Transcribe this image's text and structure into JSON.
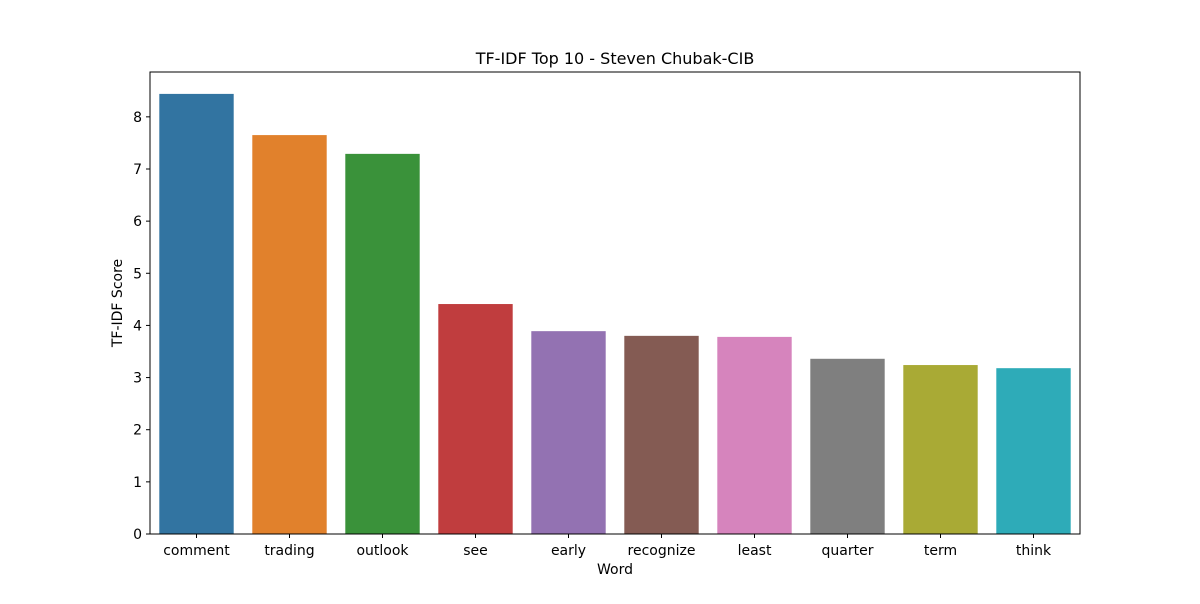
{
  "chart_data": {
    "type": "bar",
    "title": "TF-IDF Top 10 - Steven Chubak-CIB",
    "xlabel": "Word",
    "ylabel": "TF-IDF Score",
    "categories": [
      "comment",
      "trading",
      "outlook",
      "see",
      "early",
      "recognize",
      "least",
      "quarter",
      "term",
      "think"
    ],
    "values": [
      8.44,
      7.65,
      7.29,
      4.41,
      3.89,
      3.8,
      3.78,
      3.36,
      3.24,
      3.18
    ],
    "colors": [
      "#3274a1",
      "#e1812c",
      "#3a923a",
      "#c03d3e",
      "#9372b2",
      "#845b53",
      "#d684bd",
      "#7f7f7f",
      "#a9aa35",
      "#2eabb8"
    ],
    "ylim": [
      0,
      8.86
    ],
    "yticks": [
      0,
      1,
      2,
      3,
      4,
      5,
      6,
      7,
      8
    ],
    "grid": false,
    "legend": "none"
  }
}
